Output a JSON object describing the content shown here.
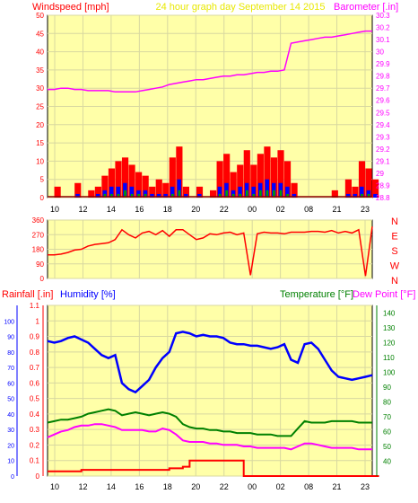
{
  "header": {
    "left_label": "Windspeed [mph]",
    "center_label": "24 hour graph day   September 14 2015",
    "right_label": "Barometer [.in]"
  },
  "colors": {
    "background": "#FFFFA8",
    "frame": "#000000",
    "grid": "#D8D8A0",
    "wind_avg": "#0000FF",
    "wind_gust": "#FF0000",
    "wind_low": "#00A000",
    "barometer": "#FF00FF",
    "rain": "#FF0000",
    "humidity": "#0000FF",
    "temperature": "#008000",
    "dewpoint": "#FF00FF",
    "title_yellow": "#E8E800"
  },
  "x_ticks": [
    "10",
    "12",
    "14",
    "16",
    "18",
    "20",
    "22",
    "00",
    "02",
    "08",
    "21",
    "23"
  ],
  "chart_data": [
    {
      "type": "line",
      "id": "wind-barometer",
      "title": "24 hour graph day   September 14 2015",
      "ylabel": "Windspeed [mph]",
      "y2label": "Barometer [.in]",
      "ylim": [
        0,
        50
      ],
      "y2lim": [
        28.8,
        30.3
      ],
      "yticks": [
        "0",
        "5",
        "10",
        "15",
        "20",
        "25",
        "30",
        "35",
        "40",
        "45",
        "50"
      ],
      "y2ticks": [
        "28.8",
        "28.9",
        "29",
        "29.1",
        "29.2",
        "29.3",
        "29.4",
        "29.5",
        "29.6",
        "29.7",
        "29.8",
        "29.9",
        "30",
        "30.1",
        "30.2",
        "30.3"
      ],
      "grid": true,
      "x": [
        0,
        1,
        2,
        3,
        4,
        5,
        6,
        7,
        8,
        9,
        10,
        11,
        12,
        13,
        14,
        15,
        16,
        17,
        18,
        19,
        20,
        21,
        22,
        23,
        24,
        25,
        26,
        27,
        28,
        29,
        30,
        31,
        32,
        33,
        34,
        35,
        36,
        37,
        38,
        39,
        40,
        41,
        42,
        43,
        44,
        45,
        46,
        47,
        48
      ],
      "series": [
        {
          "role": "barometer",
          "axis": "right",
          "values": [
            29.69,
            29.69,
            29.7,
            29.7,
            29.69,
            29.69,
            29.68,
            29.68,
            29.68,
            29.68,
            29.67,
            29.67,
            29.67,
            29.67,
            29.68,
            29.69,
            29.7,
            29.71,
            29.73,
            29.74,
            29.75,
            29.76,
            29.77,
            29.77,
            29.78,
            29.79,
            29.8,
            29.8,
            29.81,
            29.81,
            29.82,
            29.83,
            29.83,
            29.84,
            29.84,
            29.85,
            30.07,
            30.08,
            30.09,
            30.1,
            30.11,
            30.12,
            30.12,
            30.13,
            30.14,
            30.15,
            30.16,
            30.17,
            30.17
          ]
        },
        {
          "role": "gust",
          "axis": "left",
          "values": [
            0,
            3,
            0,
            0,
            4,
            0,
            2,
            3,
            6,
            8,
            10,
            11,
            9,
            7,
            6,
            3,
            5,
            4,
            11,
            14,
            3,
            0,
            3,
            0,
            2,
            10,
            12,
            7,
            9,
            13,
            9,
            12,
            14,
            11,
            13,
            10,
            4,
            0,
            0,
            0,
            0,
            0,
            2,
            0,
            5,
            3,
            10,
            8,
            5
          ]
        },
        {
          "role": "average",
          "axis": "left",
          "values": [
            0,
            0,
            0,
            0,
            1,
            0,
            0,
            1,
            2,
            3,
            3,
            4,
            3,
            2,
            2,
            1,
            1,
            1,
            3,
            5,
            1,
            0,
            1,
            0,
            0,
            3,
            4,
            2,
            3,
            4,
            3,
            4,
            5,
            4,
            4,
            3,
            1,
            0,
            0,
            0,
            0,
            0,
            0,
            0,
            1,
            1,
            3,
            2,
            1
          ]
        },
        {
          "role": "low",
          "axis": "left",
          "values": [
            0,
            0,
            0,
            0,
            0,
            0,
            0,
            0,
            1,
            1,
            1,
            2,
            1,
            1,
            1,
            0,
            0,
            0,
            1,
            2,
            0,
            0,
            0,
            0,
            0,
            1,
            2,
            1,
            1,
            2,
            1,
            2,
            2,
            2,
            2,
            1,
            0,
            0,
            0,
            0,
            0,
            0,
            0,
            0,
            0,
            0,
            1,
            1,
            0
          ]
        }
      ]
    },
    {
      "type": "line",
      "id": "wind-direction",
      "ylim": [
        0,
        360
      ],
      "yticks": [
        "0",
        "90",
        "180",
        "270",
        "360"
      ],
      "y2ticks": [
        "N",
        "E",
        "S",
        "W",
        "N"
      ],
      "grid": true,
      "x": [
        0,
        1,
        2,
        3,
        4,
        5,
        6,
        7,
        8,
        9,
        10,
        11,
        12,
        13,
        14,
        15,
        16,
        17,
        18,
        19,
        20,
        21,
        22,
        23,
        24,
        25,
        26,
        27,
        28,
        29,
        30,
        31,
        32,
        33,
        34,
        35,
        36,
        37,
        38,
        39,
        40,
        41,
        42,
        43,
        44,
        45,
        46,
        47,
        48
      ],
      "series": [
        {
          "role": "direction",
          "values": [
            145,
            145,
            150,
            160,
            175,
            180,
            200,
            210,
            215,
            220,
            240,
            300,
            270,
            250,
            280,
            290,
            270,
            295,
            260,
            300,
            300,
            270,
            240,
            250,
            275,
            270,
            280,
            285,
            270,
            280,
            20,
            275,
            285,
            280,
            280,
            275,
            285,
            285,
            285,
            290,
            290,
            285,
            295,
            280,
            290,
            280,
            300,
            15,
            320
          ]
        }
      ]
    },
    {
      "type": "line",
      "id": "rain-humidity-temp",
      "ylabel": "Rainfall [.in]",
      "y2label": "Temperature [°F]",
      "legend": [
        "Rainfall [.in]",
        "Humidity [%]",
        "Temperature [°F]",
        "Dew Point [°F]"
      ],
      "ylim": [
        0,
        1.1
      ],
      "y2lim": [
        30,
        145
      ],
      "yticks": [
        "0",
        "0.1",
        "0.2",
        "0.3",
        "0.4",
        "0.5",
        "0.6",
        "0.7",
        "0.8",
        "0.9",
        "1",
        "1.1"
      ],
      "y2ticks": [
        "40",
        "50",
        "60",
        "70",
        "80",
        "90",
        "100",
        "110",
        "120",
        "130",
        "140"
      ],
      "humidity_ticks": [
        "0",
        "10",
        "20",
        "30",
        "40",
        "50",
        "60",
        "70",
        "80",
        "90",
        "100"
      ],
      "grid": true,
      "x": [
        0,
        1,
        2,
        3,
        4,
        5,
        6,
        7,
        8,
        9,
        10,
        11,
        12,
        13,
        14,
        15,
        16,
        17,
        18,
        19,
        20,
        21,
        22,
        23,
        24,
        25,
        26,
        27,
        28,
        29,
        30,
        31,
        32,
        33,
        34,
        35,
        36,
        37,
        38,
        39,
        40,
        41,
        42,
        43,
        44,
        45,
        46,
        47,
        48
      ],
      "series": [
        {
          "name": "Rainfall [.in]",
          "axis": "left",
          "values": [
            0.03,
            0.03,
            0.03,
            0.03,
            0.03,
            0.04,
            0.04,
            0.04,
            0.04,
            0.04,
            0.04,
            0.04,
            0.04,
            0.04,
            0.04,
            0.04,
            0.04,
            0.04,
            0.05,
            0.05,
            0.06,
            0.1,
            0.1,
            0.1,
            0.1,
            0.1,
            0.1,
            0.1,
            0.1,
            0.0,
            0.0,
            0.0,
            0.0,
            0.0,
            0.0,
            0.0,
            0.0,
            0.0,
            0.0,
            0.0,
            0.0,
            0.0,
            0.0,
            0.0,
            0.0,
            0.0,
            0.0,
            0.0,
            0.0
          ]
        },
        {
          "name": "Humidity [%]",
          "axis": "humidity",
          "values": [
            87,
            86,
            87,
            89,
            90,
            88,
            86,
            82,
            78,
            76,
            78,
            60,
            56,
            54,
            58,
            62,
            70,
            76,
            80,
            92,
            93,
            92,
            90,
            91,
            90,
            90,
            89,
            86,
            85,
            85,
            84,
            84,
            83,
            82,
            83,
            85,
            75,
            73,
            85,
            86,
            82,
            75,
            68,
            64,
            63,
            62,
            63,
            64,
            65
          ]
        },
        {
          "name": "Temperature [°F]",
          "axis": "right",
          "values": [
            66,
            67,
            68,
            68,
            69,
            70,
            72,
            73,
            74,
            75,
            74,
            71,
            72,
            73,
            72,
            71,
            72,
            73,
            72,
            70,
            65,
            63,
            62,
            62,
            61,
            61,
            60,
            60,
            59,
            59,
            59,
            58,
            58,
            58,
            57,
            57,
            57,
            62,
            67,
            66,
            66,
            66,
            67,
            67,
            67,
            67,
            66,
            66,
            66
          ]
        },
        {
          "name": "Dew Point [°F]",
          "axis": "right",
          "values": [
            56,
            58,
            60,
            61,
            63,
            64,
            64,
            65,
            65,
            64,
            63,
            61,
            61,
            61,
            61,
            60,
            60,
            62,
            61,
            58,
            54,
            53,
            53,
            53,
            52,
            52,
            51,
            51,
            51,
            50,
            50,
            49,
            49,
            49,
            49,
            49,
            48,
            50,
            52,
            52,
            51,
            50,
            49,
            49,
            49,
            49,
            48,
            48,
            48
          ]
        }
      ]
    }
  ]
}
